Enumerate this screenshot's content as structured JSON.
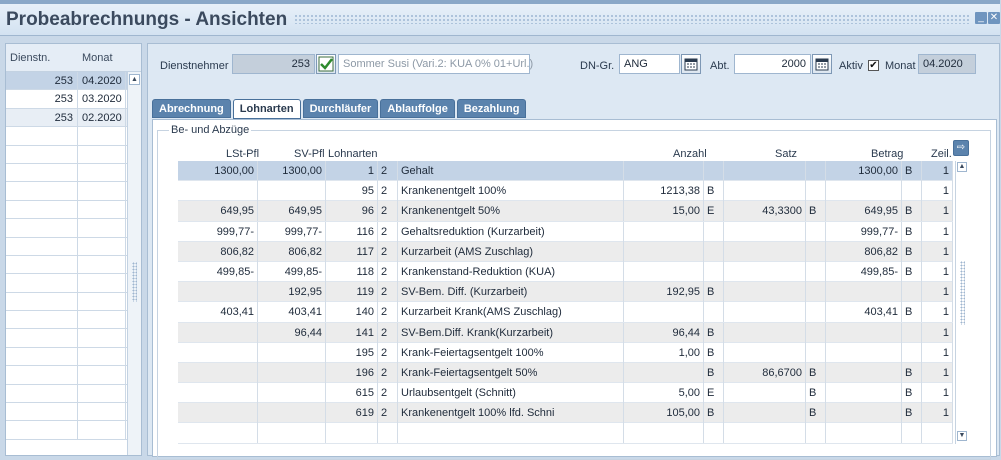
{
  "window": {
    "title": "Probeabrechnungs - Ansichten",
    "minimize_label": "_",
    "close_label": "✕"
  },
  "left_list": {
    "columns": [
      "Dienstn.",
      "Monat"
    ],
    "rows": [
      {
        "dienstnehmer": "253",
        "monat": "04.2020"
      },
      {
        "dienstnehmer": "253",
        "monat": "03.2020"
      },
      {
        "dienstnehmer": "253",
        "monat": "02.2020"
      }
    ],
    "scroll_up_glyph": "▲"
  },
  "header": {
    "dienstnehmer_label": "Dienstnehmer",
    "dienstnehmer_value": "253",
    "dienstnehmer_name": "Sommer Susi (Vari.2: KUA 0% 01+Url.)",
    "dngr_label": "DN-Gr.",
    "dngr_value": "ANG",
    "abt_label": "Abt.",
    "abt_value": "2000",
    "aktiv_label": "Aktiv",
    "aktiv_checked": true,
    "aktiv_mark": "✔",
    "monat_label": "Monat",
    "monat_value": "04.2020"
  },
  "tabs": [
    "Abrechnung",
    "Lohnarten",
    "Durchläufer",
    "Ablauffolge",
    "Bezahlung"
  ],
  "active_tab": "Lohnarten",
  "group": {
    "label": "Be- und Abzüge",
    "export_glyph": "⇨"
  },
  "grid": {
    "headers": {
      "lst": "LSt-Pfl",
      "sv": "SV-Pfl",
      "lohnarten": "Lohnarten",
      "anzahl": "Anzahl",
      "satz": "Satz",
      "betrag": "Betrag",
      "zeil": "Zeil."
    },
    "rows": [
      {
        "lst": "1300,00",
        "sv": "1300,00",
        "nr": "1",
        "k": "2",
        "name": "Gehalt",
        "anzahl": "",
        "a_flag": "",
        "satz": "",
        "s_flag": "",
        "betrag": "1300,00",
        "b_flag": "B",
        "zeil": "1"
      },
      {
        "lst": "",
        "sv": "",
        "nr": "95",
        "k": "2",
        "name": "Krankenentgelt 100%",
        "anzahl": "1213,38",
        "a_flag": "B",
        "satz": "",
        "s_flag": "",
        "betrag": "",
        "b_flag": "",
        "zeil": "1"
      },
      {
        "lst": "649,95",
        "sv": "649,95",
        "nr": "96",
        "k": "2",
        "name": "Krankenentgelt 50%",
        "anzahl": "15,00",
        "a_flag": "E",
        "satz": "43,3300",
        "s_flag": "B",
        "betrag": "649,95",
        "b_flag": "B",
        "zeil": "1"
      },
      {
        "lst": "999,77-",
        "sv": "999,77-",
        "nr": "116",
        "k": "2",
        "name": "Gehaltsreduktion (Kurzarbeit)",
        "anzahl": "",
        "a_flag": "",
        "satz": "",
        "s_flag": "",
        "betrag": "999,77-",
        "b_flag": "B",
        "zeil": "1"
      },
      {
        "lst": "806,82",
        "sv": "806,82",
        "nr": "117",
        "k": "2",
        "name": "Kurzarbeit (AMS Zuschlag)",
        "anzahl": "",
        "a_flag": "",
        "satz": "",
        "s_flag": "",
        "betrag": "806,82",
        "b_flag": "B",
        "zeil": "1"
      },
      {
        "lst": "499,85-",
        "sv": "499,85-",
        "nr": "118",
        "k": "2",
        "name": "Krankenstand-Reduktion (KUA)",
        "anzahl": "",
        "a_flag": "",
        "satz": "",
        "s_flag": "",
        "betrag": "499,85-",
        "b_flag": "B",
        "zeil": "1"
      },
      {
        "lst": "",
        "sv": "192,95",
        "nr": "119",
        "k": "2",
        "name": "SV-Bem. Diff. (Kurzarbeit)",
        "anzahl": "192,95",
        "a_flag": "B",
        "satz": "",
        "s_flag": "",
        "betrag": "",
        "b_flag": "",
        "zeil": "1"
      },
      {
        "lst": "403,41",
        "sv": "403,41",
        "nr": "140",
        "k": "2",
        "name": "Kurzarbeit Krank(AMS Zuschlag)",
        "anzahl": "",
        "a_flag": "",
        "satz": "",
        "s_flag": "",
        "betrag": "403,41",
        "b_flag": "B",
        "zeil": "1"
      },
      {
        "lst": "",
        "sv": "96,44",
        "nr": "141",
        "k": "2",
        "name": "SV-Bem.Diff. Krank(Kurzarbeit)",
        "anzahl": "96,44",
        "a_flag": "B",
        "satz": "",
        "s_flag": "",
        "betrag": "",
        "b_flag": "",
        "zeil": "1"
      },
      {
        "lst": "",
        "sv": "",
        "nr": "195",
        "k": "2",
        "name": "Krank-Feiertagsentgelt 100%",
        "anzahl": "1,00",
        "a_flag": "B",
        "satz": "",
        "s_flag": "",
        "betrag": "",
        "b_flag": "",
        "zeil": "1"
      },
      {
        "lst": "",
        "sv": "",
        "nr": "196",
        "k": "2",
        "name": "Krank-Feiertagsentgelt 50%",
        "anzahl": "",
        "a_flag": "B",
        "satz": "86,6700",
        "s_flag": "B",
        "betrag": "",
        "b_flag": "B",
        "zeil": "1"
      },
      {
        "lst": "",
        "sv": "",
        "nr": "615",
        "k": "2",
        "name": "Urlaubsentgelt (Schnitt)",
        "anzahl": "5,00",
        "a_flag": "E",
        "satz": "",
        "s_flag": "B",
        "betrag": "",
        "b_flag": "B",
        "zeil": "1"
      },
      {
        "lst": "",
        "sv": "",
        "nr": "619",
        "k": "2",
        "name": "Krankenentgelt 100% lfd. Schni",
        "anzahl": "105,00",
        "a_flag": "B",
        "satz": "",
        "s_flag": "B",
        "betrag": "",
        "b_flag": "B",
        "zeil": "1"
      }
    ],
    "scroll_up_glyph": "▲",
    "scroll_down_glyph": "▼"
  }
}
